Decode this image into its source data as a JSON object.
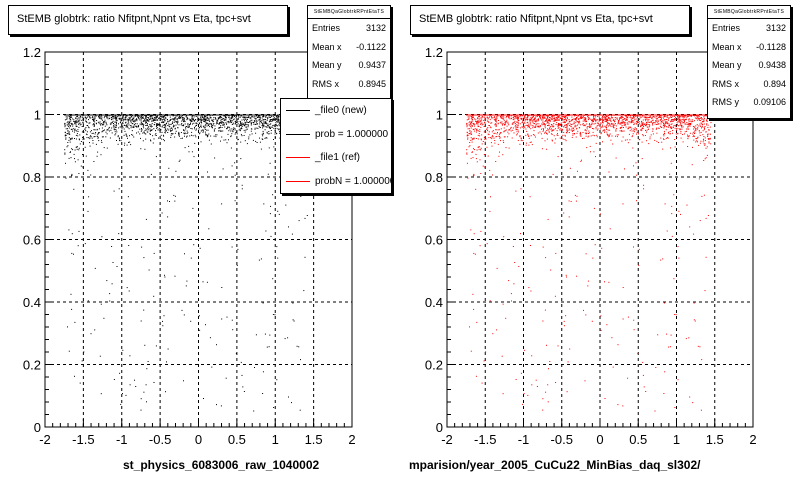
{
  "chart_data": [
    {
      "type": "scatter",
      "title": "StEMB globtrk: ratio Nfitpnt,Npnt vs Eta, tpc+svt",
      "series": [
        {
          "color": "#000000"
        }
      ],
      "xlim": [
        -2,
        2
      ],
      "ylim": [
        0,
        1.2
      ],
      "x_ticks": [
        "-2",
        "-1.5",
        "-1",
        "-0.5",
        "0",
        "0.5",
        "1",
        "1.5",
        "2"
      ],
      "y_ticks": [
        "0",
        "0.2",
        "0.4",
        "0.6",
        "0.8",
        "1",
        "1.2"
      ],
      "grid": true,
      "stats": {
        "header": "StEMBQaGlobtrkRPntEtaTS",
        "rows": [
          {
            "label": "Entries",
            "value": "3132"
          },
          {
            "label": "Mean x",
            "value": "-0.1122"
          },
          {
            "label": "Mean y",
            "value": "0.9437"
          },
          {
            "label": "RMS x",
            "value": "0.8945"
          }
        ]
      },
      "legend": {
        "placement": "top-right",
        "entries": [
          {
            "text": "_file0 (new)",
            "color": "#000000"
          },
          {
            "text": "prob = 1.000000",
            "color": "#000000"
          },
          {
            "text": "_file1 (ref)",
            "color": "#ff0000"
          },
          {
            "text": "probN = 1.000000",
            "color": "#ff0000"
          }
        ]
      },
      "footer": "st_physics_6083006_raw_1040002"
    },
    {
      "type": "scatter",
      "title": "StEMB globtrk: ratio Nfitpnt,Npnt vs Eta, tpc+svt",
      "series": [
        {
          "color": "#ff0000"
        }
      ],
      "xlim": [
        -2,
        2
      ],
      "ylim": [
        0,
        1.2
      ],
      "x_ticks": [
        "-2",
        "-1.5",
        "-1",
        "-0.5",
        "0",
        "0.5",
        "1",
        "1.5",
        "2"
      ],
      "y_ticks": [
        "0",
        "0.2",
        "0.4",
        "0.6",
        "0.8",
        "1",
        "1.2"
      ],
      "grid": true,
      "stats": {
        "header": "StEMBQaGlobtrkRPntEtaTS",
        "rows": [
          {
            "label": "Entries",
            "value": "3132"
          },
          {
            "label": "Mean x",
            "value": "-0.1128"
          },
          {
            "label": "Mean y",
            "value": "0.9438"
          },
          {
            "label": "RMS x",
            "value": "0.894"
          },
          {
            "label": "RMS y",
            "value": "0.09106"
          }
        ]
      },
      "footer": "mparision/year_2005_CuCu22_MinBias_daq_sl302/"
    }
  ]
}
